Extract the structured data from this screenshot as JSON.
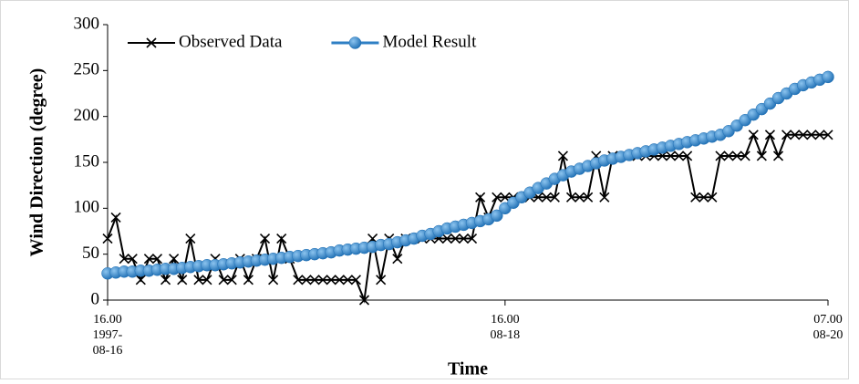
{
  "chart_data": {
    "type": "line",
    "x_label": "Time",
    "y_label": "Wind Direction (degree)",
    "x": [
      0,
      1,
      2,
      3,
      4,
      5,
      6,
      7,
      8,
      9,
      10,
      11,
      12,
      13,
      14,
      15,
      16,
      17,
      18,
      19,
      20,
      21,
      22,
      23,
      24,
      25,
      26,
      27,
      28,
      29,
      30,
      31,
      32,
      33,
      34,
      35,
      36,
      37,
      38,
      39,
      40,
      41,
      42,
      43,
      44,
      45,
      46,
      47,
      48,
      49,
      50,
      51,
      52,
      53,
      54,
      55,
      56,
      57,
      58,
      59,
      60,
      61,
      62,
      63,
      64,
      65,
      66,
      67,
      68,
      69,
      70,
      71,
      72,
      73,
      74,
      75,
      76,
      77,
      78,
      79,
      80,
      81,
      82,
      83,
      84,
      85,
      86,
      87
    ],
    "xlim": [
      0,
      87
    ],
    "xticks": [
      {
        "value": 0,
        "label": [
          "16.00",
          "1997-",
          "08-16"
        ]
      },
      {
        "value": 48,
        "label": [
          "16.00",
          "08-18"
        ]
      },
      {
        "value": 87,
        "label": [
          "07.00",
          "08-20"
        ]
      }
    ],
    "ylim": [
      0,
      300
    ],
    "yticks": [
      0,
      50,
      100,
      150,
      200,
      250,
      300
    ],
    "legend": "top-left",
    "series": [
      {
        "name": "Observed Data",
        "color": "#000000",
        "marker": "x",
        "values": [
          67,
          90,
          45,
          45,
          22,
          45,
          45,
          22,
          45,
          22,
          67,
          22,
          22,
          45,
          22,
          22,
          45,
          22,
          45,
          67,
          22,
          67,
          45,
          22,
          22,
          22,
          22,
          22,
          22,
          22,
          22,
          0,
          67,
          22,
          67,
          45,
          67,
          67,
          67,
          67,
          67,
          67,
          67,
          67,
          67,
          112,
          90,
          112,
          112,
          112,
          112,
          112,
          112,
          112,
          112,
          157,
          112,
          112,
          112,
          157,
          112,
          157,
          157,
          157,
          157,
          157,
          157,
          157,
          157,
          157,
          157,
          112,
          112,
          112,
          157,
          157,
          157,
          157,
          180,
          157,
          180,
          157,
          180,
          180,
          180,
          180,
          180,
          180
        ]
      },
      {
        "name": "Model Result",
        "color": "#2e7fc4",
        "marker": "circle",
        "values": [
          29,
          30,
          31,
          31,
          32,
          32,
          33,
          34,
          34,
          35,
          36,
          37,
          38,
          38,
          39,
          40,
          41,
          42,
          43,
          44,
          45,
          46,
          47,
          48,
          49,
          50,
          51,
          52,
          54,
          55,
          56,
          57,
          58,
          60,
          61,
          63,
          65,
          67,
          70,
          72,
          75,
          78,
          80,
          82,
          84,
          86,
          88,
          92,
          100,
          106,
          112,
          117,
          122,
          127,
          132,
          136,
          140,
          143,
          146,
          149,
          152,
          154,
          156,
          158,
          160,
          162,
          164,
          166,
          168,
          170,
          172,
          174,
          176,
          178,
          180,
          184,
          190,
          196,
          202,
          208,
          214,
          220,
          225,
          230,
          234,
          237,
          240,
          243
        ]
      }
    ]
  }
}
